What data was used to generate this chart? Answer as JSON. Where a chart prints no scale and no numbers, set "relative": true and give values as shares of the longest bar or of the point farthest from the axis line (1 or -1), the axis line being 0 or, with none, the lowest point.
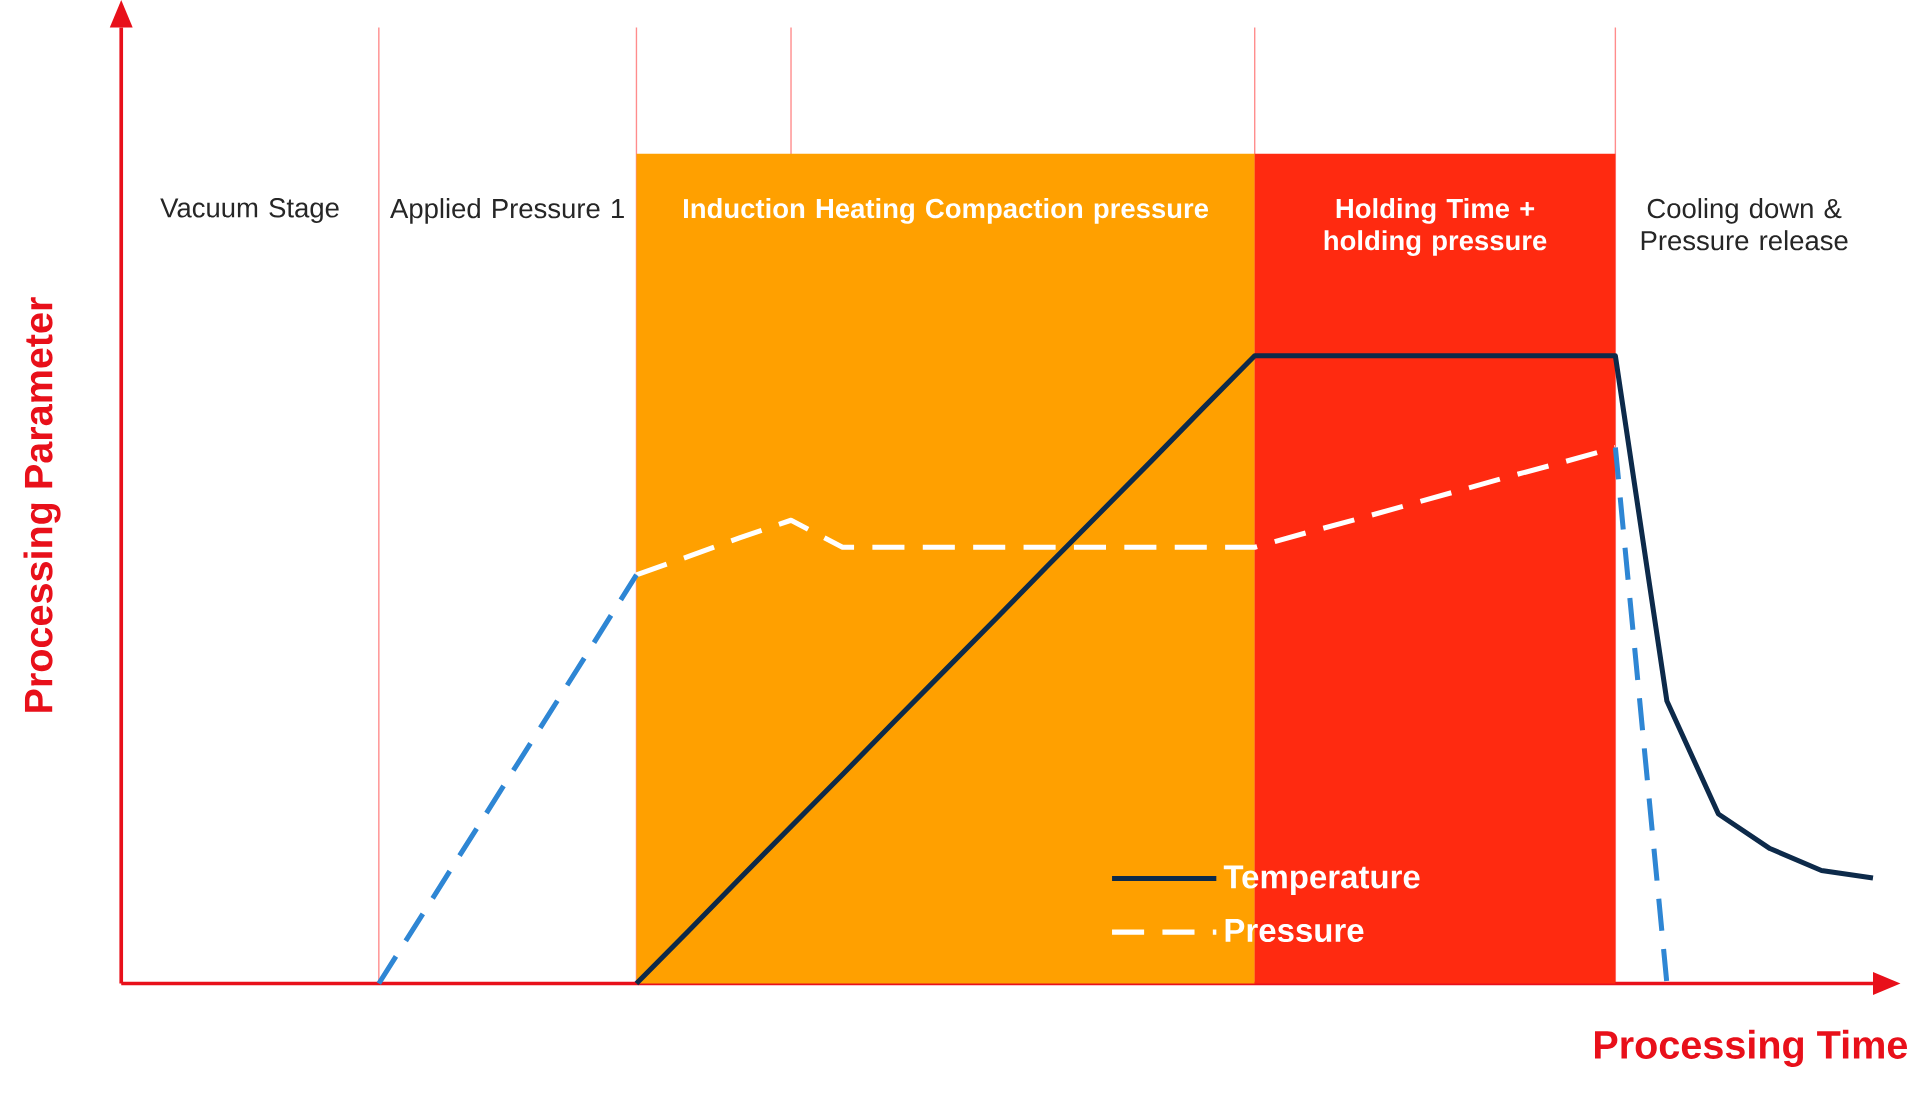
{
  "chart_data": {
    "type": "line",
    "relative": true,
    "xlabel": "Processing Time",
    "ylabel": "Processing Parameter",
    "tick_labels": false,
    "legend": "bottom right",
    "marker": "none",
    "categories": [
      null,
      null,
      null,
      null,
      null,
      null,
      null,
      null,
      null,
      null,
      null,
      null,
      null,
      null,
      null,
      null,
      null,
      null,
      null,
      null,
      null,
      null,
      null,
      null,
      null,
      null,
      null,
      null,
      null,
      null,
      null,
      null,
      null,
      null,
      null
    ],
    "series": [
      {
        "name": "Temperature",
        "color": "#0d2a4a",
        "line_style": "solid",
        "values": [
          null,
          null,
          null,
          null,
          null,
          null,
          null,
          null,
          null,
          null,
          0,
          0.083,
          0.167,
          0.25,
          0.333,
          0.417,
          0.5,
          0.583,
          0.667,
          0.75,
          0.833,
          0.917,
          1,
          1,
          1,
          1,
          1,
          1,
          1,
          1,
          0.45,
          0.27,
          0.215,
          0.18,
          0.168
        ]
      },
      {
        "name": "Pressure",
        "color": "#ffffff",
        "line_style": "dashed",
        "values": [
          null,
          null,
          null,
          null,
          null,
          null,
          null,
          null,
          null,
          null,
          0.651,
          0.68,
          0.71,
          0.738,
          0.695,
          0.695,
          0.695,
          0.695,
          0.695,
          0.695,
          0.695,
          0.695,
          0.695,
          0.718,
          0.74,
          0.763,
          0.786,
          0.809,
          0.831,
          0.854,
          null,
          null,
          null,
          null,
          null
        ]
      },
      {
        "color": "#2e86d4",
        "line_style": "dashed",
        "values": [
          null,
          null,
          null,
          null,
          null,
          0,
          0.13,
          0.26,
          0.39,
          0.52,
          0.651,
          null,
          null,
          null,
          null,
          null,
          null,
          null,
          null,
          null,
          null,
          null,
          null,
          null,
          null,
          null,
          null,
          null,
          null,
          0.854,
          0,
          null,
          null,
          null,
          null
        ]
      }
    ],
    "grid": "x",
    "annotations": [
      "Vacuum Stage",
      "Applied Pressure 1",
      "Induction Heating Compaction pressure",
      "Holding Time + holding pressure",
      "Cooling down & Pressure release"
    ]
  }
}
